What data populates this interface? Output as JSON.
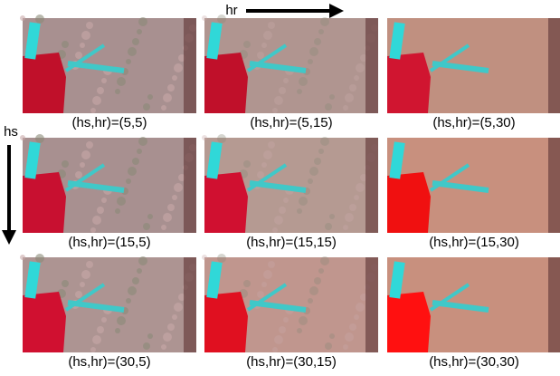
{
  "figure": {
    "column_axis_label": "hr",
    "row_axis_label": "hs",
    "rows": [
      [
        "(hs,hr)=(5,5)",
        "(hs,hr)=(5,15)",
        "(hs,hr)=(5,30)"
      ],
      [
        "(hs,hr)=(15,5)",
        "(hs,hr)=(15,15)",
        "(hs,hr)=(15,30)"
      ],
      [
        "(hs,hr)=(30,5)",
        "(hs,hr)=(30,15)",
        "(hs,hr)=(30,30)"
      ]
    ]
  }
}
